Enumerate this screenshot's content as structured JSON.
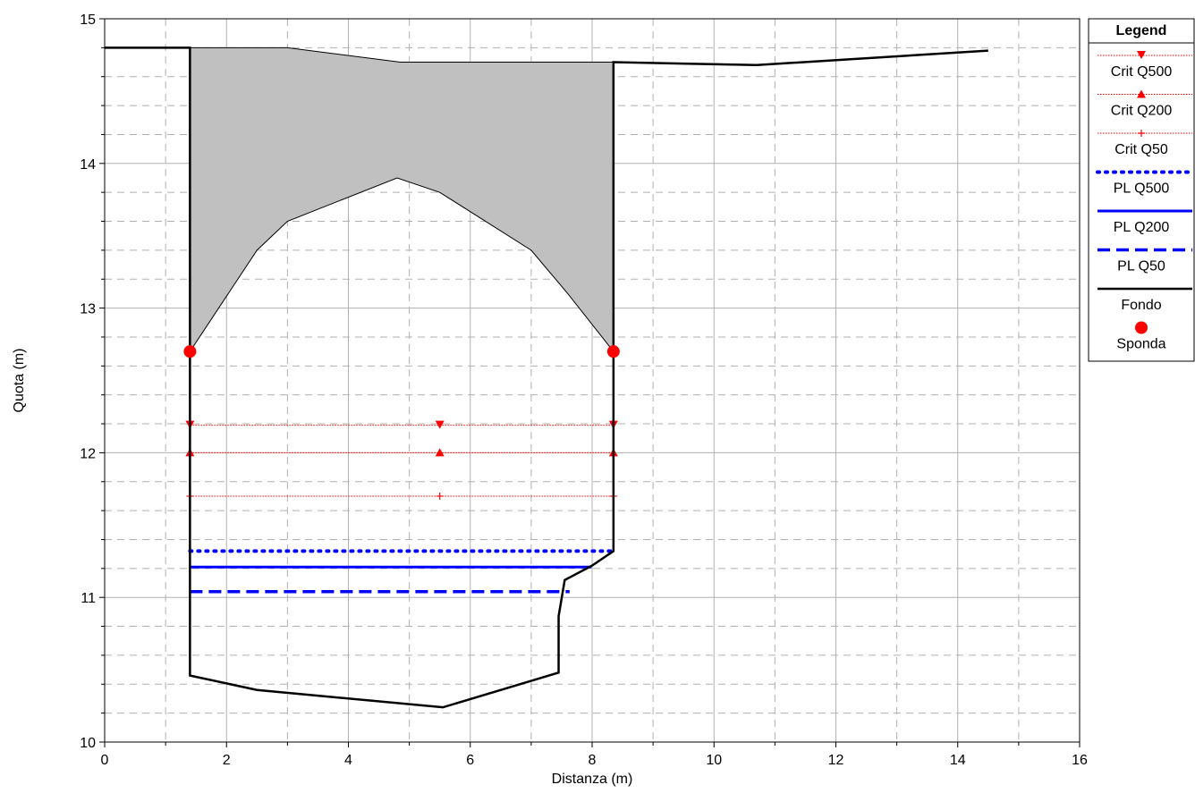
{
  "chart_data": {
    "type": "line",
    "title": "",
    "xlabel": "Distanza (m)",
    "ylabel": "Quota (m)",
    "xlim": [
      0,
      16
    ],
    "ylim": [
      10,
      15
    ],
    "xticks": [
      0,
      2,
      4,
      6,
      8,
      10,
      12,
      14,
      16
    ],
    "yticks": [
      10,
      11,
      12,
      13,
      14,
      15
    ],
    "grid": true,
    "legend_position": "right",
    "legend_title": "Legend",
    "colors": {
      "crit": "#ff0000",
      "pl": "#0000ff",
      "fondo": "#000000",
      "sponda": "#ff0000",
      "deck_fill": "#c0c0c0"
    },
    "deck": {
      "top": [
        [
          1.4,
          14.8
        ],
        [
          3.0,
          14.8
        ],
        [
          4.85,
          14.7
        ],
        [
          8.35,
          14.7
        ]
      ],
      "bottom": [
        [
          8.35,
          12.7
        ],
        [
          7.6,
          13.1
        ],
        [
          7.0,
          13.4
        ],
        [
          5.5,
          13.8
        ],
        [
          4.8,
          13.9
        ],
        [
          3.0,
          13.6
        ],
        [
          2.5,
          13.4
        ],
        [
          1.4,
          12.7
        ]
      ]
    },
    "series": [
      {
        "name": "Crit Q500",
        "style": "crit",
        "marker": "triangle-down",
        "points": [
          [
            1.4,
            12.19
          ],
          [
            5.5,
            12.19
          ],
          [
            8.35,
            12.19
          ]
        ]
      },
      {
        "name": "Crit Q200",
        "style": "crit",
        "marker": "triangle-up",
        "points": [
          [
            1.4,
            12.0
          ],
          [
            5.5,
            12.0
          ],
          [
            8.35,
            12.0
          ]
        ]
      },
      {
        "name": "Crit Q50",
        "style": "crit",
        "marker": "plus",
        "points": [
          [
            1.4,
            11.7
          ],
          [
            5.5,
            11.7
          ],
          [
            8.35,
            11.7
          ]
        ]
      },
      {
        "name": "PL Q500",
        "style": "pl-dotted",
        "points": [
          [
            1.4,
            11.32
          ],
          [
            8.35,
            11.32
          ]
        ]
      },
      {
        "name": "PL Q200",
        "style": "pl-solid",
        "points": [
          [
            1.4,
            11.21
          ],
          [
            7.99,
            11.21
          ]
        ]
      },
      {
        "name": "PL Q50",
        "style": "pl-dashed",
        "points": [
          [
            1.4,
            11.04
          ],
          [
            7.63,
            11.04
          ]
        ]
      },
      {
        "name": "Fondo",
        "style": "fondo",
        "points": [
          [
            0,
            14.8
          ],
          [
            1.4,
            14.8
          ],
          [
            1.4,
            10.46
          ],
          [
            2.5,
            10.36
          ],
          [
            5.55,
            10.24
          ],
          [
            7.45,
            10.48
          ],
          [
            7.45,
            10.87
          ],
          [
            7.55,
            11.12
          ],
          [
            8.0,
            11.22
          ],
          [
            8.35,
            11.32
          ],
          [
            8.35,
            14.7
          ],
          [
            10.7,
            14.68
          ],
          [
            14.5,
            14.78
          ]
        ]
      },
      {
        "name": "Sponda",
        "style": "sponda",
        "points": [
          [
            1.4,
            12.7
          ],
          [
            8.35,
            12.7
          ]
        ]
      }
    ]
  }
}
